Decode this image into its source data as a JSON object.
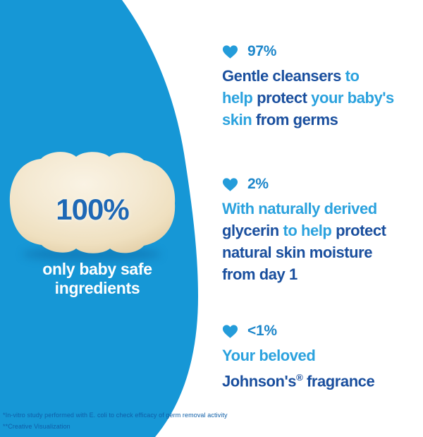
{
  "colors": {
    "blob_blue": "#1697D6",
    "text_dark": "#1A4F9E",
    "text_light": "#2BA2DE",
    "percent_blue": "#1C86CA",
    "heart_blue": "#249CDA",
    "soap_label_blue": "#1E68B5",
    "caption_white": "#FFFFFF",
    "footnote_blue": "#0F5FA8",
    "soap_cream": "#F3E7CE"
  },
  "left_panel": {
    "soap_label": "100%",
    "caption_lines": [
      "only baby safe",
      "ingredients"
    ]
  },
  "icons": {
    "heart": "heart-icon"
  },
  "benefits": [
    {
      "percent": "97%",
      "lines": [
        [
          {
            "t": "Gentle cleansers ",
            "c": "dark"
          },
          {
            "t": "to",
            "c": "light"
          }
        ],
        [
          {
            "t": "help ",
            "c": "light"
          },
          {
            "t": "protect ",
            "c": "dark"
          },
          {
            "t": "your baby's",
            "c": "light"
          }
        ],
        [
          {
            "t": "skin ",
            "c": "light"
          },
          {
            "t": "from germs",
            "c": "dark"
          }
        ]
      ]
    },
    {
      "percent": "2%",
      "lines": [
        [
          {
            "t": "With naturally derived",
            "c": "light"
          }
        ],
        [
          {
            "t": "glycerin ",
            "c": "dark"
          },
          {
            "t": "to help ",
            "c": "light"
          },
          {
            "t": "protect",
            "c": "dark"
          }
        ],
        [
          {
            "t": "natural skin moisture",
            "c": "dark"
          }
        ],
        [
          {
            "t": "from day 1",
            "c": "dark"
          }
        ]
      ]
    },
    {
      "percent": "<1%",
      "lines": [
        [
          {
            "t": "Your beloved",
            "c": "light"
          }
        ],
        [
          {
            "t": "Johnson's",
            "c": "dark"
          },
          {
            "t": "®",
            "c": "dark",
            "sup": true
          },
          {
            "t": " fragrance",
            "c": "dark"
          }
        ]
      ]
    }
  ],
  "footnotes": [
    "*In-vitro study performed with E. coli to check efficacy of germ removal activity",
    "**Creative Visualization"
  ]
}
